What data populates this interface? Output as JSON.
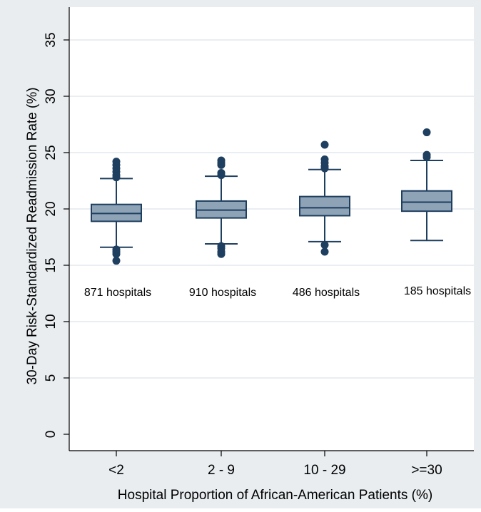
{
  "chart_data": {
    "type": "box",
    "title": "",
    "xlabel": "Hospital Proportion of African-American Patients (%)",
    "ylabel": "30-Day Risk-Standardized Readmission Rate (%)",
    "ylim": [
      0,
      37
    ],
    "yticks": [
      0,
      5,
      10,
      15,
      20,
      25,
      30,
      35
    ],
    "grid": true,
    "colors": {
      "box_fill": "#8fa3b7",
      "box_stroke": "#1e3f5f",
      "outlier": "#1e3f5f",
      "background": "#e9edf0",
      "plot_bg": "#ffffff",
      "grid": "#e3e9ee"
    },
    "categories": [
      "<2",
      "2 - 9",
      "10 - 29",
      ">=30"
    ],
    "boxes": [
      {
        "category": "<2",
        "whisker_low": 16.6,
        "q1": 18.9,
        "median": 19.6,
        "q3": 20.4,
        "whisker_high": 22.7,
        "outliers": [
          15.4,
          16.0,
          16.2,
          16.4,
          22.8,
          23.0,
          23.3,
          23.6,
          23.9,
          24.2
        ],
        "count_label": "871 hospitals"
      },
      {
        "category": "2 - 9",
        "whisker_low": 16.9,
        "q1": 19.2,
        "median": 19.9,
        "q3": 20.7,
        "whisker_high": 22.9,
        "outliers": [
          16.0,
          16.2,
          16.5,
          16.7,
          23.0,
          23.2,
          23.9,
          24.1,
          24.3
        ],
        "count_label": "910 hospitals"
      },
      {
        "category": "10 - 29",
        "whisker_low": 17.1,
        "q1": 19.4,
        "median": 20.1,
        "q3": 21.1,
        "whisker_high": 23.5,
        "outliers": [
          16.2,
          16.8,
          23.6,
          23.8,
          24.1,
          24.4,
          25.7
        ],
        "count_label": "486 hospitals"
      },
      {
        "category": ">=30",
        "whisker_low": 17.2,
        "q1": 19.8,
        "median": 20.6,
        "q3": 21.6,
        "whisker_high": 24.3,
        "outliers": [
          24.6,
          24.8,
          26.8
        ],
        "count_label": "185 hospitals"
      }
    ]
  }
}
